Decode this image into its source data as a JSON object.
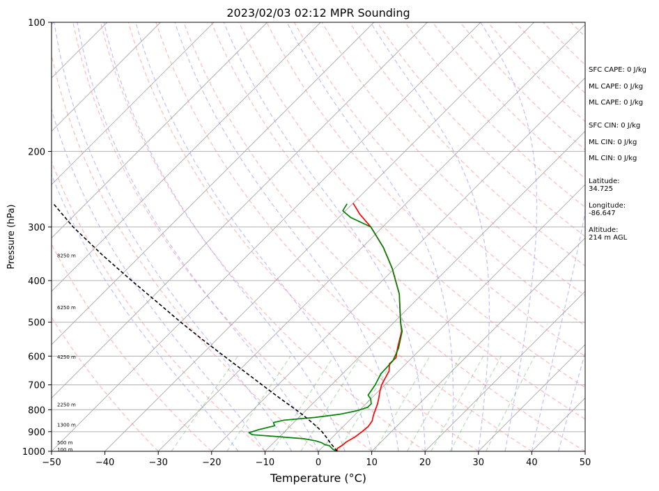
{
  "chart_data": {
    "type": "line",
    "title": "2023/02/03 02:12 MPR Sounding",
    "xlabel": "Temperature (°C)",
    "ylabel": "Pressure (hPa)",
    "xlim": [
      -50,
      50
    ],
    "ylim": [
      1000,
      100
    ],
    "y_scale": "log",
    "skew": "isotherms skewed 45°",
    "grid": true,
    "x_ticks": [
      "−50",
      "−40",
      "−30",
      "−20",
      "−10",
      "0",
      "10",
      "20",
      "30",
      "40",
      "50"
    ],
    "x_tick_values": [
      -50,
      -40,
      -30,
      -20,
      -10,
      0,
      10,
      20,
      30,
      40,
      50
    ],
    "y_ticks": [
      "100",
      "200",
      "300",
      "400",
      "500",
      "600",
      "700",
      "800",
      "900",
      "1000"
    ],
    "y_tick_values": [
      100,
      200,
      300,
      400,
      500,
      600,
      700,
      800,
      900,
      1000
    ],
    "height_labels": [
      {
        "text": "100 m",
        "p": 990
      },
      {
        "text": "500 m",
        "p": 955
      },
      {
        "text": "1300 m",
        "p": 868
      },
      {
        "text": "2250 m",
        "p": 778
      },
      {
        "text": "4250 m",
        "p": 603
      },
      {
        "text": "6250 m",
        "p": 462
      },
      {
        "text": "8250 m",
        "p": 350
      }
    ],
    "series": [
      {
        "role": "temperature",
        "color": "#ff0000",
        "points": [
          [
            3.5,
            1000
          ],
          [
            3.0,
            985
          ],
          [
            3.4,
            965
          ],
          [
            3.5,
            950
          ],
          [
            4.2,
            925
          ],
          [
            4.5,
            900
          ],
          [
            4.7,
            875
          ],
          [
            4.4,
            850
          ],
          [
            3.6,
            825
          ],
          [
            2.9,
            800
          ],
          [
            2.2,
            775
          ],
          [
            1.3,
            750
          ],
          [
            0.3,
            725
          ],
          [
            -0.6,
            700
          ],
          [
            -1.2,
            675
          ],
          [
            -1.8,
            650
          ],
          [
            -3.1,
            625
          ],
          [
            -3.0,
            605
          ],
          [
            -4.5,
            575
          ],
          [
            -6.9,
            525
          ],
          [
            -8.8,
            500
          ],
          [
            -14.3,
            430
          ],
          [
            -20.4,
            375
          ],
          [
            -26.0,
            335
          ],
          [
            -32.2,
            300
          ],
          [
            -36.7,
            280
          ],
          [
            -40.0,
            264
          ]
        ]
      },
      {
        "role": "dewpoint",
        "color": "#008000",
        "points": [
          [
            3.5,
            1000
          ],
          [
            2.4,
            990
          ],
          [
            1.7,
            980
          ],
          [
            1.0,
            970
          ],
          [
            0.0,
            965
          ],
          [
            -1.0,
            955
          ],
          [
            -2.5,
            945
          ],
          [
            -5.0,
            935
          ],
          [
            -10.0,
            925
          ],
          [
            -15.5,
            915
          ],
          [
            -16.5,
            905
          ],
          [
            -15.2,
            890
          ],
          [
            -13.0,
            872
          ],
          [
            -13.8,
            857
          ],
          [
            -12.3,
            846
          ],
          [
            -7.0,
            834
          ],
          [
            -3.0,
            820
          ],
          [
            -0.5,
            805
          ],
          [
            1.0,
            790
          ],
          [
            1.0,
            775
          ],
          [
            0.0,
            755
          ],
          [
            -1.2,
            740
          ],
          [
            -1.8,
            700
          ],
          [
            -2.8,
            660
          ],
          [
            -3.0,
            615
          ],
          [
            -4.3,
            575
          ],
          [
            -6.8,
            525
          ],
          [
            -8.8,
            500
          ],
          [
            -14.3,
            430
          ],
          [
            -20.4,
            375
          ],
          [
            -26.0,
            335
          ],
          [
            -32.2,
            300
          ],
          [
            -37.8,
            285
          ],
          [
            -40.5,
            275
          ],
          [
            -41.0,
            265
          ]
        ]
      },
      {
        "role": "parcel",
        "color": "#000000",
        "points": [
          [
            3.5,
            1000
          ],
          [
            2.6,
            985
          ],
          [
            1.6,
            970
          ],
          [
            0.3,
            950
          ],
          [
            -1.3,
            925
          ],
          [
            -3.0,
            900
          ],
          [
            -5.0,
            875
          ],
          [
            -7.2,
            850
          ],
          [
            -9.5,
            825
          ],
          [
            -12.0,
            800
          ],
          [
            -17.4,
            750
          ],
          [
            -23.0,
            700
          ],
          [
            -29.0,
            650
          ],
          [
            -35.5,
            600
          ],
          [
            -42.5,
            550
          ],
          [
            -50.0,
            500
          ],
          [
            -58.0,
            450
          ],
          [
            -67.0,
            400
          ],
          [
            -77.0,
            350
          ],
          [
            -88.0,
            300
          ],
          [
            -96.0,
            265
          ]
        ]
      }
    ],
    "sfc_cape": "SFC CAPE: 0 J/kg",
    "ml_cape_1": "ML CAPE: 0 J/kg",
    "ml_cape_2": "ML CAPE: 0 J/kg",
    "sfc_cin": "SFC CIN: 0 J/kg",
    "ml_cin_1": "ML CIN: 0 J/kg",
    "ml_cin_2": "ML CIN: 0 J/kg",
    "latitude_label": "Latitude:",
    "latitude": "34.725",
    "longitude_label": "Longitude:",
    "longitude": "-86.647",
    "altitude_label": "Altitude:",
    "altitude": "214 m AGL"
  }
}
